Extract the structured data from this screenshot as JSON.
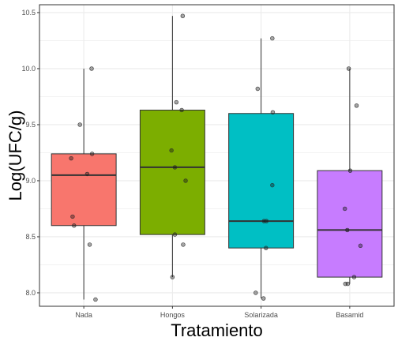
{
  "chart_data": {
    "type": "boxplot",
    "xlabel": "Tratamiento",
    "ylabel": "Log(UFC/g)",
    "ylim": [
      7.88,
      10.57
    ],
    "yticks": [
      8.0,
      8.5,
      9.0,
      9.5,
      10.0,
      10.5
    ],
    "ytick_labels": [
      "8.0",
      "8.5",
      "9.0",
      "9.5",
      "10.0",
      "10.5"
    ],
    "grid": true,
    "categories": [
      "Nada",
      "Hongos",
      "Solarizada",
      "Basamid"
    ],
    "boxes": [
      {
        "category": "Nada",
        "color": "#F8766D",
        "min": 7.94,
        "q1": 8.6,
        "median": 9.05,
        "q3": 9.24,
        "max": 10.0
      },
      {
        "category": "Hongos",
        "color": "#7CAE00",
        "min": 8.14,
        "q1": 8.52,
        "median": 9.12,
        "q3": 9.63,
        "max": 10.47
      },
      {
        "category": "Solarizada",
        "color": "#00BFC4",
        "min": 7.95,
        "q1": 8.4,
        "median": 8.64,
        "q3": 9.6,
        "max": 10.27
      },
      {
        "category": "Basamid",
        "color": "#C77CFF",
        "min": 8.08,
        "q1": 8.14,
        "median": 8.56,
        "q3": 9.09,
        "max": 10.0
      }
    ],
    "points": [
      {
        "category": "Nada",
        "values": [
          10.0,
          9.5,
          9.24,
          9.2,
          9.06,
          8.68,
          8.6,
          8.43,
          7.94
        ]
      },
      {
        "category": "Hongos",
        "values": [
          10.47,
          9.7,
          9.63,
          9.27,
          9.12,
          9.0,
          8.52,
          8.43,
          8.14
        ]
      },
      {
        "category": "Solarizada",
        "values": [
          10.27,
          9.82,
          9.61,
          8.96,
          8.64,
          8.64,
          8.4,
          8.0,
          7.95
        ]
      },
      {
        "category": "Basamid",
        "values": [
          10.0,
          9.67,
          9.09,
          8.75,
          8.56,
          8.42,
          8.14,
          8.08,
          8.08
        ]
      }
    ]
  }
}
